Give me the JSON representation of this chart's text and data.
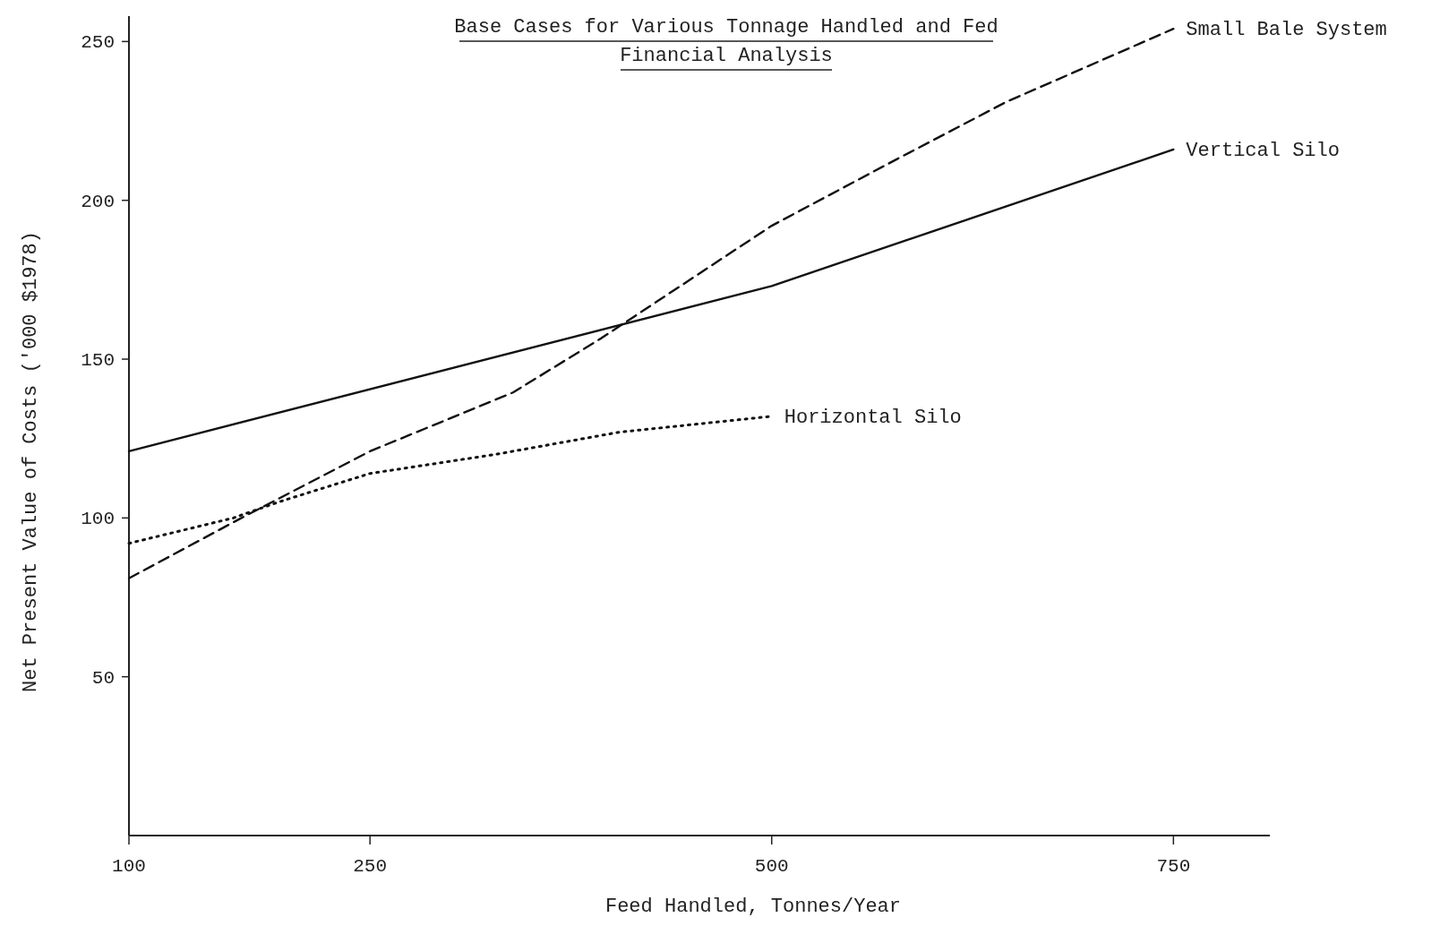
{
  "chart_data": {
    "type": "line",
    "title": "Base Cases for Various Tonnage Handled and Fed",
    "subtitle": "Financial Analysis",
    "xlabel": "Feed Handled, Tonnes/Year",
    "ylabel": "Net Present Value of Costs ('000 $1978)",
    "xlim": [
      100,
      810
    ],
    "xticks": [
      100,
      250,
      500,
      750
    ],
    "ylim": [
      0,
      258
    ],
    "yticks": [
      50,
      100,
      150,
      200,
      250
    ],
    "grid": false,
    "legend": false,
    "marker": "none",
    "series": [
      {
        "name": "Small Bale System",
        "color": "#111111",
        "line_style": "dashed",
        "x": [
          100,
          170,
          250,
          339,
          394,
          500,
          578,
          646,
          750
        ],
        "values": [
          81,
          100,
          121,
          139.5,
          156.6,
          192,
          213,
          231,
          254
        ]
      },
      {
        "name": "Vertical Silo",
        "color": "#111111",
        "line_style": "solid",
        "x": [
          100,
          500,
          750
        ],
        "values": [
          121,
          173,
          216
        ]
      },
      {
        "name": "Horizontal Silo",
        "color": "#111111",
        "line_style": "dotted",
        "x": [
          100,
          165,
          193,
          250,
          328,
          405,
          500
        ],
        "values": [
          92,
          100,
          105,
          114,
          120,
          127,
          132
        ]
      }
    ]
  }
}
